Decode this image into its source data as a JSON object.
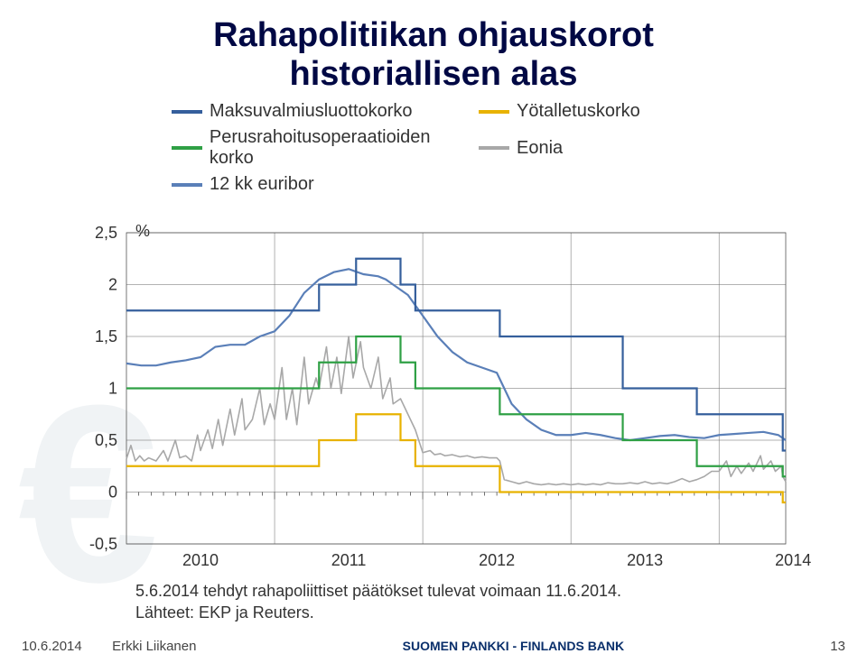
{
  "title_line1": "Rahapolitiikan ohjauskorot",
  "title_line2": "historiallisen alas",
  "legend": {
    "s1": {
      "label": "Maksuvalmiusluottokorko",
      "color": "#355f9c"
    },
    "s2": {
      "label": "Yötalletuskorko",
      "color": "#e8b200"
    },
    "s3": {
      "label": "Perusrahoitusoperaatioiden korko",
      "color": "#2fa045"
    },
    "s4": {
      "label": "Eonia",
      "color": "#a8a8a8"
    },
    "s5": {
      "label": "12 kk euribor",
      "color": "#5a7fb8"
    }
  },
  "ylabel_unit": "%",
  "ylim": [
    -0.5,
    2.5
  ],
  "ytick_step": 0.5,
  "yticks": [
    "2,5",
    "2",
    "1,5",
    "1",
    "0,5",
    "0",
    "-0,5"
  ],
  "xlim": [
    2010,
    2014.45
  ],
  "xticks": [
    2010,
    2011,
    2012,
    2013,
    2014
  ],
  "chart": {
    "background": "#ffffff",
    "grid_color": "#666666",
    "stroke_width": 2.2,
    "euribor_color": "#5a7fb8",
    "mlf_color": "#355f9c",
    "mro_color": "#2fa045",
    "dep_color": "#e8b200",
    "eonia_color": "#a8a8a8",
    "mlf": [
      [
        2010,
        1.75
      ],
      [
        2011.3,
        1.75
      ],
      [
        2011.3,
        2.0
      ],
      [
        2011.55,
        2.0
      ],
      [
        2011.55,
        2.25
      ],
      [
        2011.85,
        2.25
      ],
      [
        2011.85,
        2.0
      ],
      [
        2011.95,
        2.0
      ],
      [
        2011.95,
        1.75
      ],
      [
        2012.52,
        1.75
      ],
      [
        2012.52,
        1.5
      ],
      [
        2013.35,
        1.5
      ],
      [
        2013.35,
        1.0
      ],
      [
        2013.85,
        1.0
      ],
      [
        2013.85,
        0.75
      ],
      [
        2014.43,
        0.75
      ],
      [
        2014.43,
        0.4
      ],
      [
        2014.45,
        0.4
      ]
    ],
    "mro": [
      [
        2010,
        1.0
      ],
      [
        2011.3,
        1.0
      ],
      [
        2011.3,
        1.25
      ],
      [
        2011.55,
        1.25
      ],
      [
        2011.55,
        1.5
      ],
      [
        2011.85,
        1.5
      ],
      [
        2011.85,
        1.25
      ],
      [
        2011.95,
        1.25
      ],
      [
        2011.95,
        1.0
      ],
      [
        2012.52,
        1.0
      ],
      [
        2012.52,
        0.75
      ],
      [
        2013.35,
        0.75
      ],
      [
        2013.35,
        0.5
      ],
      [
        2013.85,
        0.5
      ],
      [
        2013.85,
        0.25
      ],
      [
        2014.43,
        0.25
      ],
      [
        2014.43,
        0.15
      ],
      [
        2014.45,
        0.15
      ]
    ],
    "dep": [
      [
        2010,
        0.25
      ],
      [
        2011.3,
        0.25
      ],
      [
        2011.3,
        0.5
      ],
      [
        2011.55,
        0.5
      ],
      [
        2011.55,
        0.75
      ],
      [
        2011.85,
        0.75
      ],
      [
        2011.85,
        0.5
      ],
      [
        2011.95,
        0.5
      ],
      [
        2011.95,
        0.25
      ],
      [
        2012.52,
        0.25
      ],
      [
        2012.52,
        0.0
      ],
      [
        2014.43,
        0.0
      ],
      [
        2014.43,
        -0.1
      ],
      [
        2014.45,
        -0.1
      ]
    ],
    "euribor": [
      [
        2010,
        1.24
      ],
      [
        2010.1,
        1.22
      ],
      [
        2010.2,
        1.22
      ],
      [
        2010.3,
        1.25
      ],
      [
        2010.4,
        1.27
      ],
      [
        2010.5,
        1.3
      ],
      [
        2010.6,
        1.4
      ],
      [
        2010.7,
        1.42
      ],
      [
        2010.8,
        1.42
      ],
      [
        2010.9,
        1.5
      ],
      [
        2011,
        1.55
      ],
      [
        2011.1,
        1.7
      ],
      [
        2011.2,
        1.92
      ],
      [
        2011.3,
        2.05
      ],
      [
        2011.4,
        2.12
      ],
      [
        2011.5,
        2.15
      ],
      [
        2011.6,
        2.1
      ],
      [
        2011.7,
        2.08
      ],
      [
        2011.75,
        2.05
      ],
      [
        2011.8,
        2.0
      ],
      [
        2011.85,
        1.95
      ],
      [
        2011.9,
        1.9
      ],
      [
        2011.95,
        1.8
      ],
      [
        2012,
        1.7
      ],
      [
        2012.1,
        1.5
      ],
      [
        2012.2,
        1.35
      ],
      [
        2012.3,
        1.25
      ],
      [
        2012.4,
        1.2
      ],
      [
        2012.5,
        1.15
      ],
      [
        2012.55,
        1.0
      ],
      [
        2012.6,
        0.85
      ],
      [
        2012.7,
        0.7
      ],
      [
        2012.8,
        0.6
      ],
      [
        2012.9,
        0.55
      ],
      [
        2013,
        0.55
      ],
      [
        2013.1,
        0.57
      ],
      [
        2013.2,
        0.55
      ],
      [
        2013.3,
        0.52
      ],
      [
        2013.4,
        0.5
      ],
      [
        2013.5,
        0.52
      ],
      [
        2013.6,
        0.54
      ],
      [
        2013.7,
        0.55
      ],
      [
        2013.8,
        0.53
      ],
      [
        2013.9,
        0.52
      ],
      [
        2014,
        0.55
      ],
      [
        2014.1,
        0.56
      ],
      [
        2014.2,
        0.57
      ],
      [
        2014.3,
        0.58
      ],
      [
        2014.4,
        0.55
      ],
      [
        2014.45,
        0.5
      ]
    ],
    "eonia": [
      [
        2010,
        0.32
      ],
      [
        2010.03,
        0.45
      ],
      [
        2010.06,
        0.3
      ],
      [
        2010.09,
        0.35
      ],
      [
        2010.12,
        0.3
      ],
      [
        2010.15,
        0.33
      ],
      [
        2010.2,
        0.3
      ],
      [
        2010.25,
        0.4
      ],
      [
        2010.28,
        0.3
      ],
      [
        2010.33,
        0.5
      ],
      [
        2010.36,
        0.33
      ],
      [
        2010.4,
        0.35
      ],
      [
        2010.44,
        0.3
      ],
      [
        2010.48,
        0.55
      ],
      [
        2010.5,
        0.4
      ],
      [
        2010.55,
        0.6
      ],
      [
        2010.58,
        0.42
      ],
      [
        2010.62,
        0.7
      ],
      [
        2010.65,
        0.45
      ],
      [
        2010.7,
        0.8
      ],
      [
        2010.73,
        0.55
      ],
      [
        2010.78,
        0.9
      ],
      [
        2010.8,
        0.6
      ],
      [
        2010.85,
        0.7
      ],
      [
        2010.9,
        1.0
      ],
      [
        2010.93,
        0.65
      ],
      [
        2010.97,
        0.85
      ],
      [
        2011,
        0.7
      ],
      [
        2011.05,
        1.2
      ],
      [
        2011.08,
        0.7
      ],
      [
        2011.12,
        1.0
      ],
      [
        2011.15,
        0.65
      ],
      [
        2011.2,
        1.3
      ],
      [
        2011.23,
        0.85
      ],
      [
        2011.28,
        1.1
      ],
      [
        2011.3,
        1.0
      ],
      [
        2011.35,
        1.4
      ],
      [
        2011.38,
        1.0
      ],
      [
        2011.42,
        1.3
      ],
      [
        2011.45,
        0.95
      ],
      [
        2011.5,
        1.5
      ],
      [
        2011.53,
        1.1
      ],
      [
        2011.58,
        1.45
      ],
      [
        2011.6,
        1.2
      ],
      [
        2011.65,
        1.0
      ],
      [
        2011.7,
        1.3
      ],
      [
        2011.73,
        0.9
      ],
      [
        2011.78,
        1.1
      ],
      [
        2011.8,
        0.85
      ],
      [
        2011.85,
        0.9
      ],
      [
        2011.9,
        0.75
      ],
      [
        2011.95,
        0.6
      ],
      [
        2012,
        0.38
      ],
      [
        2012.05,
        0.4
      ],
      [
        2012.08,
        0.36
      ],
      [
        2012.12,
        0.37
      ],
      [
        2012.15,
        0.35
      ],
      [
        2012.2,
        0.36
      ],
      [
        2012.25,
        0.34
      ],
      [
        2012.3,
        0.35
      ],
      [
        2012.35,
        0.33
      ],
      [
        2012.4,
        0.34
      ],
      [
        2012.45,
        0.33
      ],
      [
        2012.5,
        0.33
      ],
      [
        2012.52,
        0.3
      ],
      [
        2012.55,
        0.12
      ],
      [
        2012.6,
        0.1
      ],
      [
        2012.65,
        0.08
      ],
      [
        2012.7,
        0.1
      ],
      [
        2012.75,
        0.08
      ],
      [
        2012.8,
        0.07
      ],
      [
        2012.85,
        0.08
      ],
      [
        2012.9,
        0.07
      ],
      [
        2012.95,
        0.08
      ],
      [
        2013,
        0.07
      ],
      [
        2013.05,
        0.08
      ],
      [
        2013.1,
        0.07
      ],
      [
        2013.15,
        0.08
      ],
      [
        2013.2,
        0.07
      ],
      [
        2013.25,
        0.09
      ],
      [
        2013.3,
        0.08
      ],
      [
        2013.35,
        0.08
      ],
      [
        2013.4,
        0.09
      ],
      [
        2013.45,
        0.08
      ],
      [
        2013.5,
        0.1
      ],
      [
        2013.55,
        0.08
      ],
      [
        2013.6,
        0.09
      ],
      [
        2013.65,
        0.08
      ],
      [
        2013.7,
        0.1
      ],
      [
        2013.75,
        0.13
      ],
      [
        2013.8,
        0.1
      ],
      [
        2013.85,
        0.12
      ],
      [
        2013.9,
        0.15
      ],
      [
        2013.95,
        0.2
      ],
      [
        2014,
        0.2
      ],
      [
        2014.05,
        0.3
      ],
      [
        2014.08,
        0.15
      ],
      [
        2014.12,
        0.25
      ],
      [
        2014.15,
        0.18
      ],
      [
        2014.2,
        0.28
      ],
      [
        2014.23,
        0.2
      ],
      [
        2014.28,
        0.35
      ],
      [
        2014.3,
        0.22
      ],
      [
        2014.35,
        0.3
      ],
      [
        2014.38,
        0.2
      ],
      [
        2014.42,
        0.25
      ],
      [
        2014.43,
        0.15
      ],
      [
        2014.45,
        0.1
      ]
    ]
  },
  "note_line1": "5.6.2014 tehdyt rahapoliittiset päätökset tulevat voimaan 11.6.2014.",
  "note_line2": "Lähteet: EKP ja Reuters.",
  "footer": {
    "date": "10.6.2014",
    "author": "Erkki Liikanen",
    "brand": "SUOMEN PANKKI - FINLANDS BANK",
    "page": "13"
  }
}
